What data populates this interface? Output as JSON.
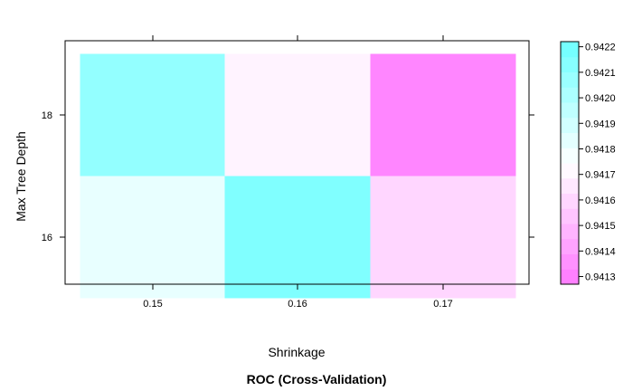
{
  "chart_data": {
    "type": "heatmap",
    "title": "",
    "xlabel": "Shrinkage",
    "ylabel": "Max Tree Depth",
    "caption": "ROC (Cross-Validation)",
    "x_categories": [
      "0.15",
      "0.16",
      "0.17"
    ],
    "y_categories": [
      "16",
      "18"
    ],
    "cells": [
      {
        "x": "0.15",
        "y": "18",
        "value": 0.94205,
        "color": "#93FFFF"
      },
      {
        "x": "0.16",
        "y": "18",
        "value": 0.94168,
        "color": "#FFF3FF"
      },
      {
        "x": "0.17",
        "y": "18",
        "value": 0.94135,
        "color": "#FF86FF"
      },
      {
        "x": "0.15",
        "y": "16",
        "value": 0.94182,
        "color": "#E8FFFF"
      },
      {
        "x": "0.16",
        "y": "16",
        "value": 0.94212,
        "color": "#80FFFF"
      },
      {
        "x": "0.17",
        "y": "16",
        "value": 0.94158,
        "color": "#FFD6FF"
      }
    ],
    "colorbar": {
      "range": [
        0.94127,
        0.94222
      ],
      "tick_values": [
        0.9413,
        0.9414,
        0.9415,
        0.9416,
        0.9417,
        0.9418,
        0.9419,
        0.942,
        0.9421,
        0.9422
      ],
      "tick_labels": [
        "0.9413",
        "0.9414",
        "0.9415",
        "0.9416",
        "0.9417",
        "0.9418",
        "0.9419",
        "0.9420",
        "0.9421",
        "0.9422"
      ],
      "colors": [
        "#FF80FF",
        "#FF91FF",
        "#FFA3FF",
        "#FFB4FF",
        "#FFC5FF",
        "#FFD6FF",
        "#FFE8FF",
        "#FFF9FF",
        "#F6FFFF",
        "#E4FFFF",
        "#D1FFFF",
        "#BFFFFF",
        "#ACFFFF",
        "#9AFFFF",
        "#87FFFF",
        "#75FFFF"
      ]
    },
    "grid": false
  }
}
